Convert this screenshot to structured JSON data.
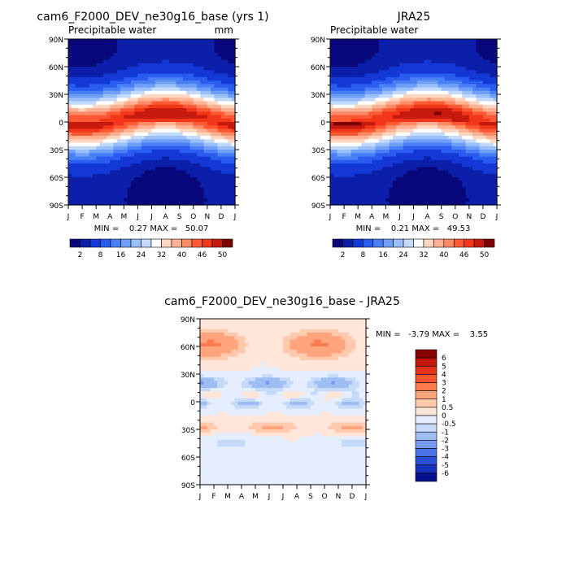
{
  "chart_data": [
    {
      "type": "heatmap",
      "title": "cam6_F2000_DEV_ne30g16_base (yrs 1)",
      "subtitle": "Precipitable water",
      "units": "mm",
      "x_ticks": [
        "J",
        "F",
        "M",
        "A",
        "M",
        "J",
        "J",
        "A",
        "S",
        "O",
        "N",
        "D",
        "J"
      ],
      "y_ticks": [
        "90N",
        "60N",
        "30N",
        "0",
        "30S",
        "60S",
        "90S"
      ],
      "ylim": [
        -90,
        90
      ],
      "min_max_label": "MIN =    0.27 MAX =   50.07",
      "min": 0.27,
      "max": 50.07,
      "colorbar_labels": [
        "2",
        "8",
        "16",
        "24",
        "32",
        "40",
        "46",
        "50"
      ],
      "colorbar_levels": [
        2,
        4,
        8,
        12,
        16,
        20,
        24,
        28,
        32,
        36,
        40,
        43,
        46,
        48,
        50
      ],
      "colorbar_colors": [
        "#08087a",
        "#0b1fa8",
        "#1338d6",
        "#2a5cf0",
        "#4a7ff5",
        "#6f9ff7",
        "#9bbff9",
        "#c4dafc",
        "#ffffff",
        "#ffd6c0",
        "#ffb394",
        "#ff8a66",
        "#ff5a33",
        "#f2361a",
        "#c71a0f",
        "#7a0000"
      ]
    },
    {
      "type": "heatmap",
      "title": "JRA25",
      "subtitle": "Precipitable water",
      "x_ticks": [
        "J",
        "F",
        "M",
        "A",
        "M",
        "J",
        "J",
        "A",
        "S",
        "O",
        "N",
        "D",
        "J"
      ],
      "y_ticks": [
        "90N",
        "60N",
        "30N",
        "0",
        "30S",
        "60S",
        "90S"
      ],
      "ylim": [
        -90,
        90
      ],
      "min_max_label": "MIN =    0.21 MAX =   49.53",
      "min": 0.21,
      "max": 49.53,
      "colorbar_labels": [
        "2",
        "8",
        "16",
        "24",
        "32",
        "40",
        "46",
        "50"
      ],
      "colorbar_levels": [
        2,
        4,
        8,
        12,
        16,
        20,
        24,
        28,
        32,
        36,
        40,
        43,
        46,
        48,
        50
      ],
      "colorbar_colors": [
        "#08087a",
        "#0b1fa8",
        "#1338d6",
        "#2a5cf0",
        "#4a7ff5",
        "#6f9ff7",
        "#9bbff9",
        "#c4dafc",
        "#ffffff",
        "#ffd6c0",
        "#ffb394",
        "#ff8a66",
        "#ff5a33",
        "#f2361a",
        "#c71a0f",
        "#7a0000"
      ]
    },
    {
      "type": "heatmap",
      "title": "cam6_F2000_DEV_ne30g16_base - JRA25",
      "x_ticks": [
        "J",
        "F",
        "M",
        "A",
        "M",
        "J",
        "J",
        "A",
        "S",
        "O",
        "N",
        "D",
        "J"
      ],
      "y_ticks": [
        "90N",
        "60N",
        "30N",
        "0",
        "30S",
        "60S",
        "90S"
      ],
      "ylim": [
        -90,
        90
      ],
      "min_max_label": "MIN =   -3.79 MAX =    3.55",
      "min": -3.79,
      "max": 3.55,
      "colorbar_labels": [
        "6",
        "5",
        "4",
        "3",
        "2",
        "1",
        "0.5",
        "0",
        "-0.5",
        "-1",
        "-2",
        "-3",
        "-4",
        "-5",
        "-6"
      ],
      "colorbar_colors": [
        "#8b0000",
        "#c0160c",
        "#e2321c",
        "#f4542e",
        "#ff7a4e",
        "#ffa47d",
        "#ffc9ad",
        "#ffe6d8",
        "#e4eefe",
        "#c4daf8",
        "#9dbdf4",
        "#7499ee",
        "#4c74e6",
        "#2b50d8",
        "#1430b8",
        "#05108a"
      ]
    }
  ]
}
